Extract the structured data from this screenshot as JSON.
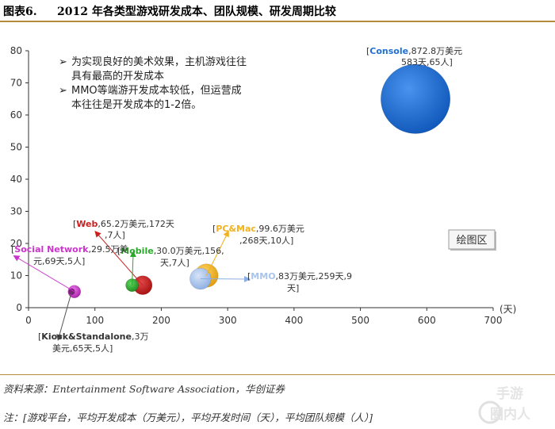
{
  "header": {
    "figure_label": "图表6.",
    "title": "2012 年各类型游戏研发成本、团队规模、研发周期比较"
  },
  "footer": {
    "source": "资料来源：Entertainment Software Association，华创证券",
    "note": "注：[游戏平台，平均开发成本（万美元），平均开发时间（天），平均团队规模（人）]"
  },
  "watermark": {
    "line1": "手游",
    "line2": "圈内人"
  },
  "chart_data": {
    "type": "bubble",
    "x_unit_label": "(天)",
    "xlim": [
      0,
      700
    ],
    "ylim": [
      0,
      80
    ],
    "x_ticks": [
      0,
      100,
      200,
      300,
      400,
      500,
      600,
      700
    ],
    "y_ticks": [
      0,
      10,
      20,
      30,
      40,
      50,
      60,
      70,
      80
    ],
    "grid": false,
    "plot_area_button": "绘图区",
    "annotations": [
      "为实现良好的美术效果，主机游戏往往具有最高的开发成本",
      "MMO等端游开发成本较低，但运营成本往往是开发成本的1-2倍。"
    ],
    "series": [
      {
        "name": "Console",
        "x": 583,
        "y": 65,
        "size": 872.8,
        "color": "#1f6fd6",
        "label_name": "Console",
        "label_rest": ",872.8万美元",
        "label_line2": "583天,65人]"
      },
      {
        "name": "Web",
        "x": 172,
        "y": 7,
        "size": 65.2,
        "color": "#cc1f1f",
        "label_name": "Web",
        "label_rest": ",65.2万美元,172天",
        "label_line2": ",7人]"
      },
      {
        "name": "Mobile",
        "x": 156,
        "y": 7,
        "size": 30.0,
        "color": "#2aa82a",
        "label_name": "Mobile",
        "label_rest": ",30.0万美元,156,",
        "label_line2": "天,7人]"
      },
      {
        "name": "PC&Mac",
        "x": 268,
        "y": 10,
        "size": 99.6,
        "color": "#f2b21f",
        "label_name": "PC&Mac",
        "label_rest": ",99.6万美元",
        "label_line2": ",268天,10人]"
      },
      {
        "name": "MMO",
        "x": 259,
        "y": 9,
        "size": 83,
        "color": "#a9c4ec",
        "label_name": "MMO",
        "label_rest": ",83万美元,259天,9",
        "label_line2": "天]"
      },
      {
        "name": "Social Network",
        "x": 69,
        "y": 5,
        "size": 29.5,
        "color": "#cc33cc",
        "label_name": "Social Network",
        "label_rest": ",29.5万美",
        "label_line2": "元,69天,5人]"
      },
      {
        "name": "Kiosk&Standalone",
        "x": 65,
        "y": 5,
        "size": 3,
        "color": "#7a1f7a",
        "label_name": "Kiosk&Standalone",
        "label_rest": ",3万",
        "label_line2": "美元,65天,5人]"
      }
    ]
  }
}
